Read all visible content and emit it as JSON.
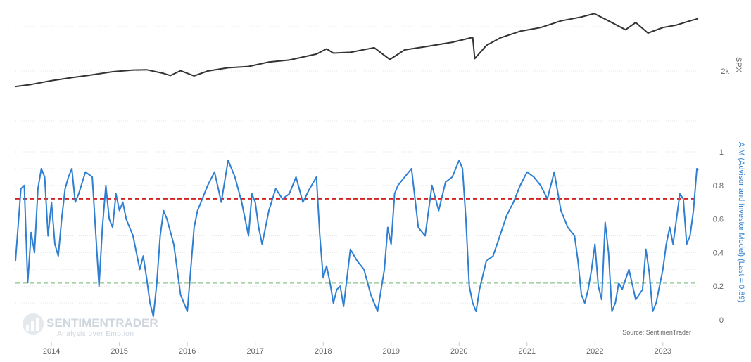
{
  "chart_data": {
    "type": "line",
    "source": "Source: SentimenTrader",
    "logo": {
      "name": "SENTIMENTRADER",
      "tagline": "Analysis over Emotion"
    },
    "colors": {
      "spx": "#333333",
      "aim": "#2e7fd1",
      "upper_threshold": "#cc0000",
      "lower_threshold": "#1a8a1a"
    },
    "x_axis": {
      "ticks": [
        "2014",
        "2015",
        "2016",
        "2017",
        "2018",
        "2019",
        "2020",
        "2021",
        "2022",
        "2023"
      ],
      "range": [
        2013.47,
        2023.52
      ]
    },
    "top_panel": {
      "ylabel": "SPX",
      "ytick_label": "2k",
      "series": {
        "name": "SPX",
        "x": [
          2013.47,
          2013.7,
          2014.0,
          2014.3,
          2014.6,
          2014.9,
          2015.2,
          2015.4,
          2015.65,
          2015.75,
          2015.9,
          2016.1,
          2016.3,
          2016.6,
          2016.9,
          2017.2,
          2017.5,
          2017.9,
          2018.05,
          2018.15,
          2018.4,
          2018.75,
          2018.98,
          2019.2,
          2019.5,
          2019.9,
          2020.1,
          2020.2,
          2020.23,
          2020.4,
          2020.6,
          2020.9,
          2021.2,
          2021.5,
          2021.8,
          2021.99,
          2022.2,
          2022.45,
          2022.6,
          2022.78,
          2023.0,
          2023.2,
          2023.4,
          2023.52
        ],
        "values": [
          1650,
          1700,
          1800,
          1880,
          1960,
          2050,
          2100,
          2110,
          2000,
          1940,
          2080,
          1930,
          2070,
          2170,
          2210,
          2360,
          2430,
          2650,
          2860,
          2690,
          2720,
          2910,
          2450,
          2820,
          2950,
          3150,
          3300,
          3380,
          2480,
          3000,
          3350,
          3700,
          3900,
          4300,
          4550,
          4780,
          4300,
          3780,
          4200,
          3600,
          3900,
          4050,
          4300,
          4450
        ]
      }
    },
    "bottom_panel": {
      "ylabel": "AIM (Advisor and Investor Model) (Last = 0.89)",
      "yticks": [
        "0",
        "0.2",
        "0.4",
        "0.6",
        "0.8",
        "1"
      ],
      "ylim": [
        0,
        1
      ],
      "upper_threshold": 0.72,
      "lower_threshold": 0.22,
      "series": {
        "name": "AIM",
        "x": [
          2013.47,
          2013.55,
          2013.6,
          2013.65,
          2013.7,
          2013.75,
          2013.8,
          2013.85,
          2013.9,
          2013.95,
          2014.0,
          2014.05,
          2014.1,
          2014.15,
          2014.2,
          2014.25,
          2014.3,
          2014.35,
          2014.4,
          2014.5,
          2014.6,
          2014.7,
          2014.75,
          2014.8,
          2014.85,
          2014.9,
          2014.95,
          2015.0,
          2015.05,
          2015.1,
          2015.2,
          2015.3,
          2015.35,
          2015.4,
          2015.45,
          2015.5,
          2015.55,
          2015.6,
          2015.65,
          2015.7,
          2015.8,
          2015.9,
          2016.0,
          2016.05,
          2016.1,
          2016.15,
          2016.2,
          2016.25,
          2016.3,
          2016.4,
          2016.5,
          2016.6,
          2016.7,
          2016.8,
          2016.85,
          2016.9,
          2016.95,
          2017.0,
          2017.05,
          2017.1,
          2017.2,
          2017.3,
          2017.4,
          2017.5,
          2017.6,
          2017.7,
          2017.8,
          2017.9,
          2017.95,
          2018.0,
          2018.05,
          2018.1,
          2018.15,
          2018.2,
          2018.25,
          2018.3,
          2018.4,
          2018.5,
          2018.6,
          2018.7,
          2018.8,
          2018.9,
          2018.95,
          2019.0,
          2019.05,
          2019.1,
          2019.2,
          2019.3,
          2019.4,
          2019.5,
          2019.6,
          2019.7,
          2019.8,
          2019.9,
          2020.0,
          2020.05,
          2020.1,
          2020.15,
          2020.2,
          2020.25,
          2020.3,
          2020.4,
          2020.5,
          2020.6,
          2020.7,
          2020.8,
          2020.9,
          2021.0,
          2021.1,
          2021.2,
          2021.3,
          2021.4,
          2021.5,
          2021.6,
          2021.7,
          2021.75,
          2021.8,
          2021.85,
          2021.9,
          2021.95,
          2022.0,
          2022.05,
          2022.1,
          2022.15,
          2022.2,
          2022.25,
          2022.3,
          2022.35,
          2022.4,
          2022.5,
          2022.6,
          2022.7,
          2022.75,
          2022.8,
          2022.85,
          2022.9,
          2023.0,
          2023.05,
          2023.1,
          2023.15,
          2023.2,
          2023.25,
          2023.3,
          2023.35,
          2023.4,
          2023.45,
          2023.5,
          2023.52
        ],
        "values": [
          0.35,
          0.78,
          0.8,
          0.22,
          0.52,
          0.4,
          0.78,
          0.9,
          0.85,
          0.5,
          0.7,
          0.45,
          0.38,
          0.6,
          0.78,
          0.85,
          0.9,
          0.7,
          0.75,
          0.88,
          0.85,
          0.2,
          0.55,
          0.8,
          0.6,
          0.55,
          0.75,
          0.65,
          0.7,
          0.6,
          0.5,
          0.3,
          0.38,
          0.25,
          0.1,
          0.02,
          0.22,
          0.5,
          0.65,
          0.6,
          0.45,
          0.15,
          0.05,
          0.3,
          0.55,
          0.65,
          0.7,
          0.75,
          0.8,
          0.88,
          0.7,
          0.95,
          0.85,
          0.7,
          0.6,
          0.5,
          0.75,
          0.7,
          0.55,
          0.45,
          0.65,
          0.78,
          0.72,
          0.75,
          0.85,
          0.7,
          0.78,
          0.85,
          0.5,
          0.25,
          0.32,
          0.22,
          0.1,
          0.18,
          0.2,
          0.08,
          0.42,
          0.35,
          0.3,
          0.15,
          0.05,
          0.3,
          0.55,
          0.45,
          0.75,
          0.8,
          0.85,
          0.9,
          0.55,
          0.5,
          0.8,
          0.65,
          0.82,
          0.85,
          0.95,
          0.9,
          0.6,
          0.2,
          0.1,
          0.05,
          0.18,
          0.35,
          0.38,
          0.5,
          0.62,
          0.7,
          0.8,
          0.88,
          0.85,
          0.8,
          0.72,
          0.88,
          0.65,
          0.55,
          0.5,
          0.35,
          0.15,
          0.1,
          0.18,
          0.3,
          0.45,
          0.2,
          0.12,
          0.58,
          0.4,
          0.05,
          0.1,
          0.22,
          0.18,
          0.3,
          0.12,
          0.18,
          0.42,
          0.28,
          0.05,
          0.1,
          0.3,
          0.45,
          0.55,
          0.45,
          0.6,
          0.75,
          0.72,
          0.45,
          0.5,
          0.65,
          0.9,
          0.89
        ]
      }
    }
  }
}
